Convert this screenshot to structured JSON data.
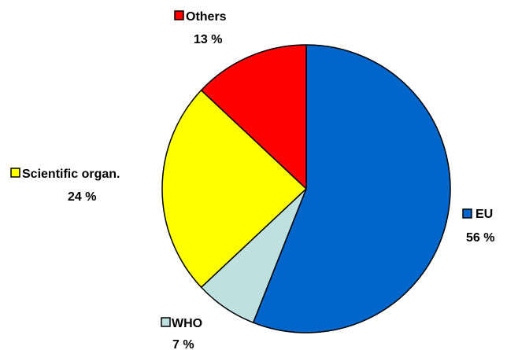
{
  "chart_data": {
    "type": "pie",
    "title": "",
    "start_angle_deg": 0,
    "direction": "clockwise",
    "slices": [
      {
        "label": "EU",
        "value": 56,
        "value_label": "56 %",
        "color": "#0066CC"
      },
      {
        "label": "WHO",
        "value": 7,
        "value_label": "7 %",
        "color": "#BFE0E0"
      },
      {
        "label": "Scientific organ.",
        "value": 24,
        "value_label": "24 %",
        "color": "#FFFF00"
      },
      {
        "label": "Others",
        "value": 13,
        "value_label": "13 %",
        "color": "#FF0000"
      }
    ]
  }
}
